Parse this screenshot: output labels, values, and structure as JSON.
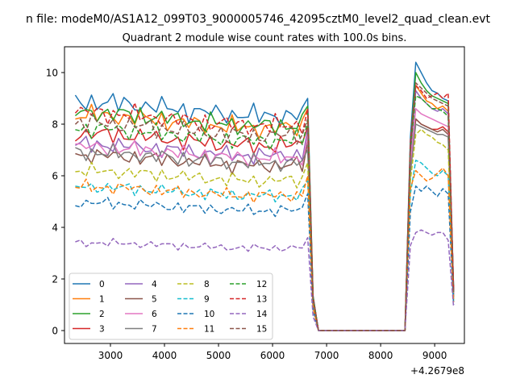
{
  "chart_data": {
    "type": "line",
    "suptitle": "n file: modeM0/AS1A12_099T03_9000005746_42095cztM0_level2_quad_clean.evt",
    "title": "Quadrant 2 module wise count rates with 100.0s bins.",
    "xlabel": "",
    "ylabel": "",
    "x_offset_label": "+4.2679e8",
    "xlim": [
      2150,
      9550
    ],
    "ylim": [
      -0.5,
      11.0
    ],
    "x_ticks": [
      3000,
      4000,
      5000,
      6000,
      7000,
      8000,
      9000
    ],
    "x_tick_labels": [
      "3000",
      "4000",
      "5000",
      "6000",
      "7000",
      "8000",
      "9000"
    ],
    "y_ticks": [
      0,
      2,
      4,
      6,
      8,
      10
    ],
    "y_tick_labels": [
      "0",
      "2",
      "4",
      "6",
      "8",
      "10"
    ],
    "grid": false,
    "legend_position": "lower-left",
    "legend_columns": 4,
    "segment_1": {
      "x_start": 2350,
      "x_end": 6650,
      "step": 100
    },
    "drop": {
      "x": [
        6750,
        6850
      ],
      "level": 0
    },
    "zero_span": [
      6850,
      8450
    ],
    "segment_2": {
      "x_start": 8550,
      "x_end": 9350,
      "step": 100
    },
    "series": [
      {
        "name": "0",
        "color": "#1f77b4",
        "style": "solid",
        "level": 8.6,
        "seg1_end": 9.0,
        "seg2": [
          7.5,
          10.4,
          10.0,
          9.6,
          9.3,
          9.2,
          9.0,
          8.9,
          1.6
        ]
      },
      {
        "name": "1",
        "color": "#ff7f0e",
        "style": "solid",
        "level": 8.1,
        "seg1_end": 8.6,
        "seg2": [
          7.0,
          9.5,
          9.2,
          8.9,
          8.8,
          8.6,
          8.7,
          8.5,
          1.5
        ]
      },
      {
        "name": "2",
        "color": "#2ca02c",
        "style": "solid",
        "level": 8.2,
        "seg1_end": 8.7,
        "seg2": [
          7.2,
          10.0,
          9.6,
          9.3,
          9.1,
          9.0,
          8.9,
          8.8,
          1.6
        ]
      },
      {
        "name": "3",
        "color": "#d62728",
        "style": "solid",
        "level": 7.4,
        "seg1_end": 7.9,
        "seg2": [
          6.5,
          8.2,
          8.0,
          7.9,
          7.8,
          7.8,
          7.9,
          7.7,
          1.4
        ]
      },
      {
        "name": "4",
        "color": "#9467bd",
        "style": "solid",
        "level": 7.0,
        "seg1_end": 7.8,
        "seg2": [
          6.8,
          9.3,
          9.0,
          8.8,
          8.6,
          8.5,
          8.6,
          8.4,
          1.5
        ]
      },
      {
        "name": "5",
        "color": "#8c564b",
        "style": "solid",
        "level": 6.6,
        "seg1_end": 7.3,
        "seg2": [
          6.2,
          8.2,
          8.0,
          7.9,
          7.8,
          7.7,
          7.8,
          7.6,
          1.3
        ]
      },
      {
        "name": "6",
        "color": "#e377c2",
        "style": "solid",
        "level": 6.9,
        "seg1_end": 7.6,
        "seg2": [
          6.4,
          8.6,
          8.4,
          8.3,
          8.2,
          8.1,
          8.0,
          7.9,
          1.4
        ]
      },
      {
        "name": "7",
        "color": "#7f7f7f",
        "style": "solid",
        "level": 6.7,
        "seg1_end": 7.0,
        "seg2": [
          6.1,
          8.0,
          7.9,
          7.8,
          7.7,
          7.6,
          7.6,
          7.5,
          1.3
        ]
      },
      {
        "name": "8",
        "color": "#bcbd22",
        "style": "dashed",
        "level": 6.0,
        "seg1_end": 6.5,
        "seg2": [
          5.8,
          7.6,
          7.8,
          7.6,
          7.5,
          7.3,
          7.2,
          7.0,
          1.2
        ]
      },
      {
        "name": "9",
        "color": "#17becf",
        "style": "dashed",
        "level": 5.4,
        "seg1_end": 5.8,
        "seg2": [
          5.3,
          6.6,
          6.5,
          6.3,
          6.1,
          6.0,
          6.2,
          6.0,
          1.1
        ]
      },
      {
        "name": "10",
        "color": "#1f77b4",
        "style": "dashed",
        "level": 4.8,
        "seg1_end": 5.3,
        "seg2": [
          4.6,
          5.6,
          5.4,
          5.6,
          5.4,
          5.2,
          5.5,
          5.3,
          1.0
        ]
      },
      {
        "name": "11",
        "color": "#ff7f0e",
        "style": "dashed",
        "level": 5.4,
        "seg1_end": 6.0,
        "seg2": [
          5.5,
          6.2,
          6.0,
          5.8,
          5.9,
          6.1,
          6.3,
          6.0,
          1.1
        ]
      },
      {
        "name": "12",
        "color": "#2ca02c",
        "style": "dashed",
        "level": 7.6,
        "seg1_end": 8.1,
        "seg2": [
          7.0,
          9.1,
          9.0,
          8.8,
          8.6,
          8.6,
          8.5,
          8.3,
          1.5
        ]
      },
      {
        "name": "13",
        "color": "#d62728",
        "style": "dashed",
        "level": 8.2,
        "seg1_end": 8.6,
        "seg2": [
          7.3,
          9.5,
          9.3,
          9.0,
          9.1,
          9.2,
          9.0,
          9.2,
          1.6
        ]
      },
      {
        "name": "14",
        "color": "#9467bd",
        "style": "dashed",
        "level": 3.3,
        "seg1_end": 3.6,
        "seg2": [
          3.3,
          3.8,
          3.9,
          3.8,
          3.7,
          3.8,
          3.8,
          3.5,
          0.9
        ]
      },
      {
        "name": "15",
        "color": "#8c564b",
        "style": "dashed",
        "level": 7.8,
        "seg1_end": 8.2,
        "seg2": [
          7.1,
          9.6,
          9.4,
          9.2,
          9.0,
          8.9,
          8.8,
          8.7,
          1.5
        ]
      }
    ]
  }
}
